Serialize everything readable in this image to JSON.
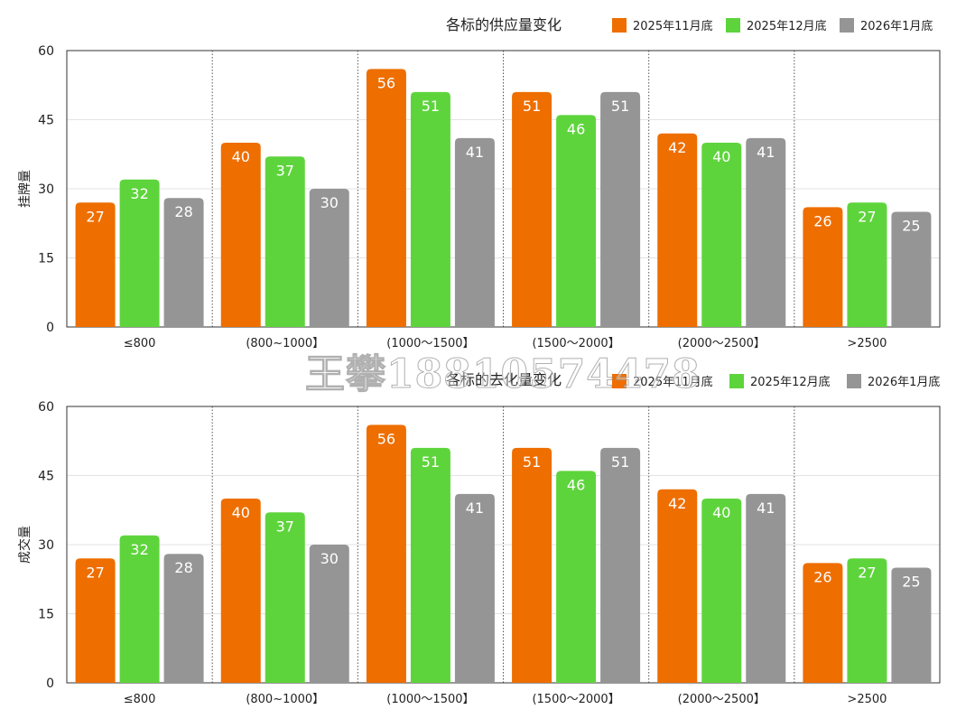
{
  "watermark": "王攀18810574478",
  "colors": {
    "s1": "#EE6E00",
    "s2": "#5ED43C",
    "s3": "#959595"
  },
  "chart_data": [
    {
      "type": "bar",
      "title": "各标的供应量变化",
      "ylabel": "挂牌量",
      "xlabel": "",
      "ylim": [
        0,
        60
      ],
      "yticks": [
        0,
        15,
        30,
        45,
        60
      ],
      "grid": true,
      "legend": "top-right",
      "categories": [
        "≤800",
        "(800~1000】",
        "(1000～1500】",
        "(1500～2000】",
        "(2000～2500】",
        ">2500"
      ],
      "series": [
        {
          "name": "2025年11月底",
          "values": [
            27,
            40,
            56,
            51,
            42,
            26
          ]
        },
        {
          "name": "2025年12月底",
          "values": [
            32,
            37,
            51,
            46,
            40,
            27
          ]
        },
        {
          "name": "2026年1月底",
          "values": [
            28,
            30,
            41,
            51,
            41,
            25
          ]
        }
      ]
    },
    {
      "type": "bar",
      "title": "各标的去化量变化",
      "ylabel": "成交量",
      "xlabel": "",
      "ylim": [
        0,
        60
      ],
      "yticks": [
        0,
        15,
        30,
        45,
        60
      ],
      "grid": true,
      "legend": "top-right",
      "categories": [
        "≤800",
        "(800~1000】",
        "(1000～1500】",
        "(1500～2000】",
        "(2000～2500】",
        ">2500"
      ],
      "series": [
        {
          "name": "2025年11月底",
          "values": [
            27,
            40,
            56,
            51,
            42,
            26
          ]
        },
        {
          "name": "2025年12月底",
          "values": [
            32,
            37,
            51,
            46,
            40,
            27
          ]
        },
        {
          "name": "2026年1月底",
          "values": [
            28,
            30,
            41,
            51,
            41,
            25
          ]
        }
      ]
    }
  ]
}
